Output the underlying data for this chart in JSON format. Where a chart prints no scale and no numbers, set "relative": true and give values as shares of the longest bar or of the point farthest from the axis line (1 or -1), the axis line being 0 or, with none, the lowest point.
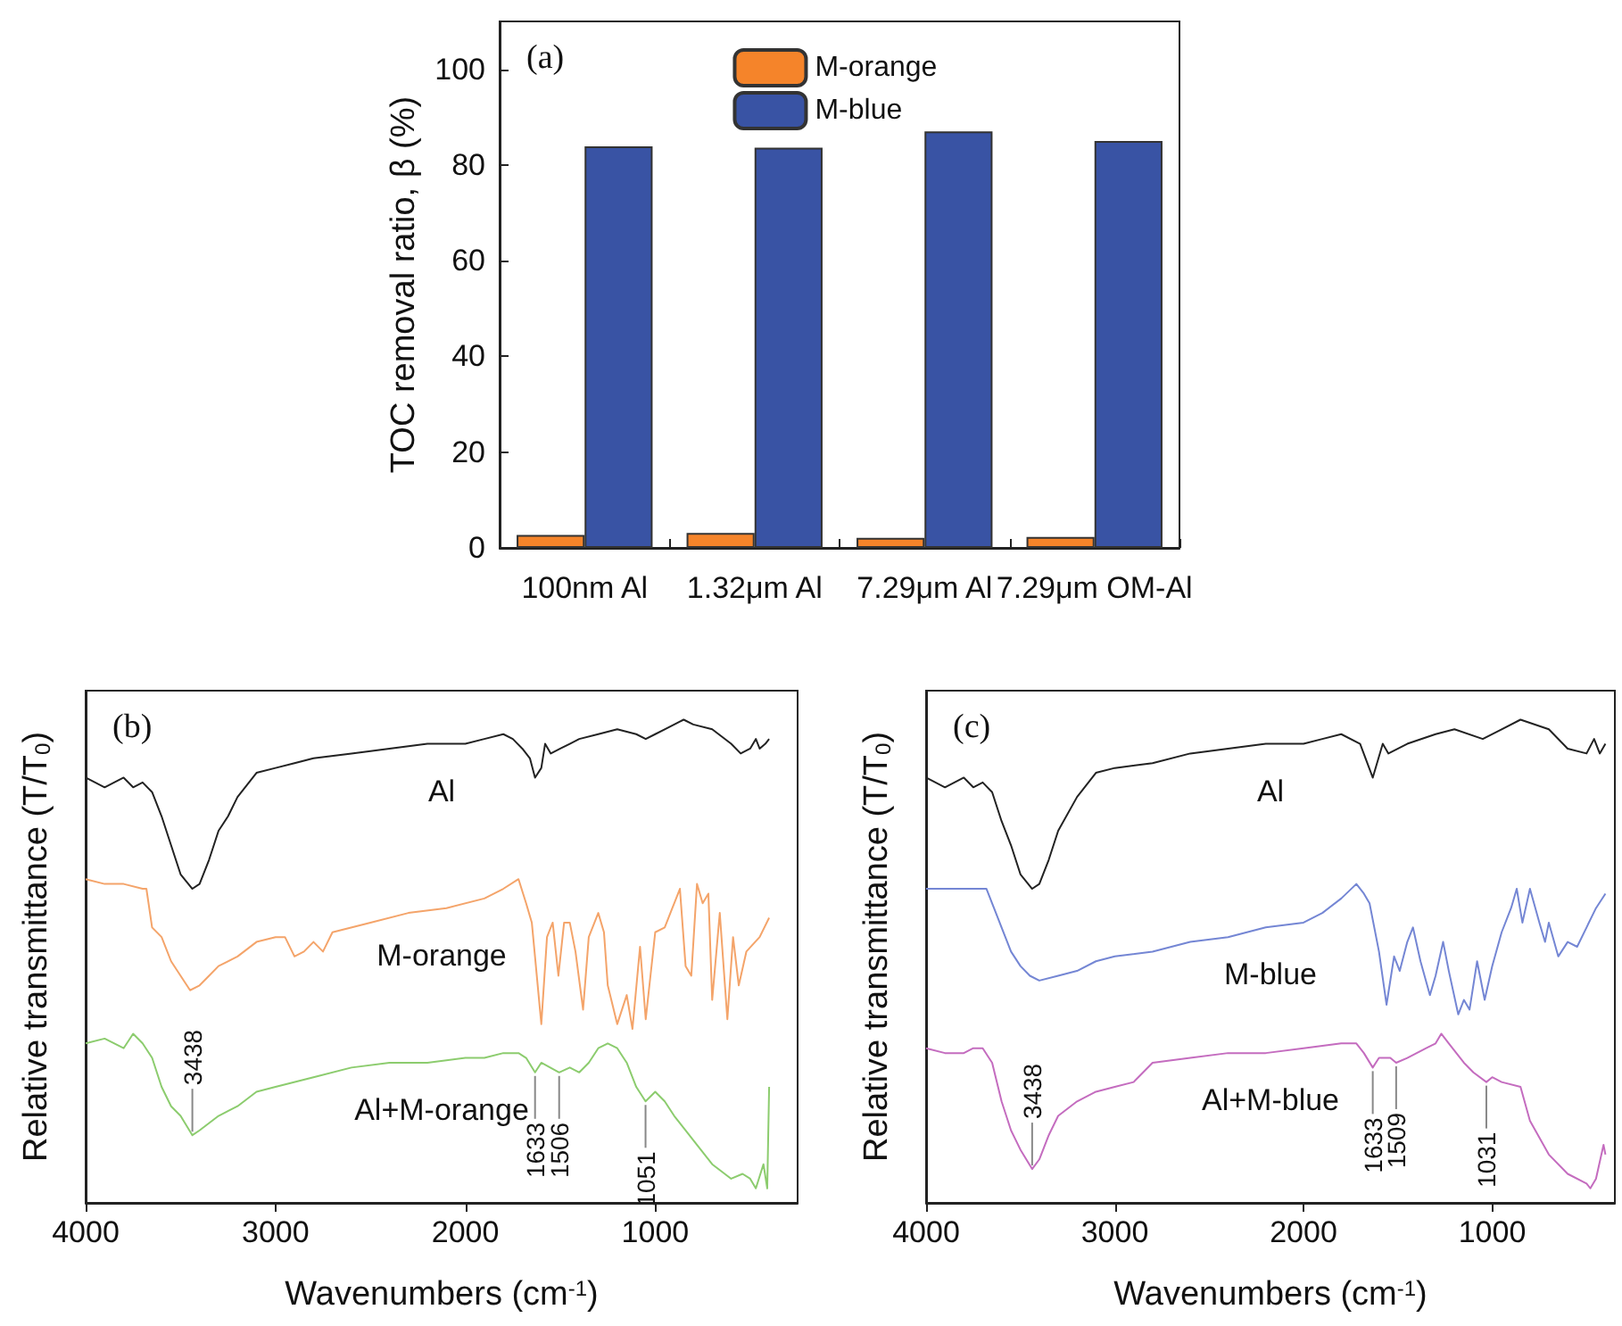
{
  "chart_data": [
    {
      "type": "bar",
      "title": "(a)",
      "ylabel": "TOC removal ratio, β (%)",
      "categories": [
        "100nm Al",
        "1.32μm Al",
        "7.29μm Al",
        "7.29μm OM-Al"
      ],
      "series": [
        {
          "name": "M-orange",
          "color": "#f5842a",
          "values": [
            2.7,
            3.1,
            2.1,
            2.3
          ]
        },
        {
          "name": "M-blue",
          "color": "#3953a4",
          "values": [
            83.9,
            83.6,
            87.0,
            85.0
          ]
        }
      ],
      "ylim": [
        0,
        110
      ],
      "yticks": [
        0,
        20,
        40,
        60,
        80,
        100
      ],
      "legend": "top"
    },
    {
      "type": "line",
      "title": "(b)",
      "xlabel": "Wavenumbers (cm$^{-1}$)",
      "ylabel": "Relative transmittance (T/T$_{0}$)",
      "relative": true,
      "xlim": [
        4000,
        250
      ],
      "xticks": [
        4000,
        3000,
        2000,
        1000
      ],
      "series": [
        {
          "name": "Al",
          "color": "#222222",
          "x": [
            4000,
            3900,
            3800,
            3750,
            3700,
            3650,
            3600,
            3550,
            3500,
            3438,
            3400,
            3350,
            3300,
            3250,
            3200,
            3100,
            3000,
            2900,
            2800,
            2600,
            2400,
            2200,
            2000,
            1900,
            1800,
            1750,
            1700,
            1660,
            1633,
            1600,
            1580,
            1550,
            1500,
            1450,
            1400,
            1300,
            1200,
            1100,
            1050,
            1000,
            950,
            850,
            800,
            700,
            600,
            550,
            500,
            470,
            450,
            420,
            400
          ],
          "values": [
            0.88,
            0.86,
            0.88,
            0.86,
            0.87,
            0.85,
            0.8,
            0.74,
            0.68,
            0.65,
            0.66,
            0.71,
            0.77,
            0.8,
            0.84,
            0.89,
            0.9,
            0.91,
            0.92,
            0.93,
            0.94,
            0.95,
            0.95,
            0.96,
            0.97,
            0.96,
            0.94,
            0.92,
            0.88,
            0.9,
            0.95,
            0.93,
            0.94,
            0.95,
            0.96,
            0.97,
            0.98,
            0.97,
            0.96,
            0.97,
            0.98,
            1.0,
            0.99,
            0.98,
            0.95,
            0.93,
            0.94,
            0.96,
            0.94,
            0.95,
            0.96
          ]
        },
        {
          "name": "M-orange",
          "color": "#f4a46a",
          "x": [
            4000,
            3900,
            3800,
            3700,
            3680,
            3650,
            3600,
            3550,
            3500,
            3450,
            3400,
            3350,
            3300,
            3200,
            3100,
            3000,
            2950,
            2900,
            2850,
            2800,
            2750,
            2700,
            2500,
            2300,
            2100,
            1900,
            1800,
            1720,
            1680,
            1650,
            1600,
            1570,
            1540,
            1510,
            1480,
            1450,
            1420,
            1380,
            1350,
            1300,
            1270,
            1250,
            1200,
            1150,
            1120,
            1080,
            1050,
            1000,
            950,
            900,
            870,
            840,
            810,
            780,
            750,
            720,
            700,
            660,
            620,
            590,
            560,
            520,
            450,
            400
          ],
          "values": [
            0.67,
            0.66,
            0.66,
            0.65,
            0.65,
            0.57,
            0.55,
            0.5,
            0.47,
            0.44,
            0.45,
            0.47,
            0.49,
            0.51,
            0.54,
            0.55,
            0.55,
            0.51,
            0.52,
            0.54,
            0.52,
            0.56,
            0.58,
            0.6,
            0.61,
            0.63,
            0.65,
            0.67,
            0.62,
            0.58,
            0.37,
            0.55,
            0.58,
            0.47,
            0.58,
            0.58,
            0.52,
            0.4,
            0.55,
            0.6,
            0.56,
            0.45,
            0.37,
            0.43,
            0.36,
            0.53,
            0.38,
            0.56,
            0.57,
            0.62,
            0.65,
            0.49,
            0.47,
            0.66,
            0.62,
            0.64,
            0.42,
            0.6,
            0.38,
            0.55,
            0.45,
            0.52,
            0.55,
            0.59
          ]
        },
        {
          "name": "Al+M-orange",
          "color": "#8ccc6e",
          "x": [
            4000,
            3900,
            3800,
            3750,
            3700,
            3650,
            3600,
            3550,
            3500,
            3438,
            3400,
            3300,
            3200,
            3100,
            3000,
            2800,
            2600,
            2400,
            2200,
            2000,
            1900,
            1800,
            1720,
            1680,
            1633,
            1600,
            1506,
            1450,
            1400,
            1350,
            1300,
            1250,
            1200,
            1150,
            1100,
            1051,
            1000,
            950,
            900,
            800,
            700,
            600,
            540,
            500,
            470,
            430,
            410,
            400
          ],
          "values": [
            0.33,
            0.34,
            0.32,
            0.35,
            0.33,
            0.3,
            0.24,
            0.2,
            0.18,
            0.14,
            0.15,
            0.18,
            0.2,
            0.23,
            0.24,
            0.26,
            0.28,
            0.29,
            0.29,
            0.3,
            0.3,
            0.31,
            0.31,
            0.3,
            0.27,
            0.29,
            0.27,
            0.28,
            0.27,
            0.29,
            0.32,
            0.33,
            0.32,
            0.29,
            0.24,
            0.21,
            0.23,
            0.21,
            0.18,
            0.13,
            0.08,
            0.05,
            0.06,
            0.05,
            0.03,
            0.08,
            0.03,
            0.24
          ]
        }
      ],
      "annotations": [
        {
          "text": "3438",
          "x": 3438,
          "y": 0.14
        },
        {
          "text": "1633",
          "x": 1633,
          "y": 0.27
        },
        {
          "text": "1506",
          "x": 1506,
          "y": 0.27
        },
        {
          "text": "1051",
          "x": 1051,
          "y": 0.21
        }
      ],
      "legend": false
    },
    {
      "type": "line",
      "title": "(c)",
      "xlabel": "Wavenumbers (cm$^{-1}$)",
      "ylabel": "Relative transmittance (T/T$_{0}$)",
      "relative": true,
      "xlim": [
        4000,
        350
      ],
      "xticks": [
        4000,
        3000,
        2000,
        1000
      ],
      "series": [
        {
          "name": "Al",
          "color": "#222222",
          "x": [
            4000,
            3900,
            3800,
            3750,
            3700,
            3650,
            3600,
            3550,
            3500,
            3438,
            3400,
            3350,
            3300,
            3200,
            3100,
            3000,
            2800,
            2600,
            2400,
            2200,
            2000,
            1900,
            1800,
            1700,
            1633,
            1580,
            1550,
            1450,
            1300,
            1200,
            1050,
            950,
            850,
            700,
            600,
            500,
            460,
            430,
            400
          ],
          "values": [
            0.88,
            0.86,
            0.88,
            0.86,
            0.87,
            0.85,
            0.79,
            0.74,
            0.68,
            0.65,
            0.66,
            0.71,
            0.77,
            0.84,
            0.89,
            0.9,
            0.91,
            0.93,
            0.94,
            0.95,
            0.95,
            0.96,
            0.97,
            0.95,
            0.88,
            0.95,
            0.93,
            0.95,
            0.97,
            0.98,
            0.96,
            0.98,
            1.0,
            0.98,
            0.94,
            0.93,
            0.96,
            0.93,
            0.95
          ]
        },
        {
          "name": "M-blue",
          "color": "#7486d4",
          "x": [
            4000,
            3900,
            3800,
            3700,
            3680,
            3650,
            3600,
            3550,
            3500,
            3450,
            3400,
            3300,
            3200,
            3100,
            3000,
            2800,
            2600,
            2400,
            2200,
            2000,
            1900,
            1800,
            1720,
            1680,
            1650,
            1600,
            1560,
            1520,
            1490,
            1450,
            1420,
            1380,
            1330,
            1300,
            1260,
            1230,
            1180,
            1150,
            1120,
            1080,
            1040,
            1000,
            950,
            900,
            870,
            840,
            800,
            750,
            720,
            700,
            650,
            600,
            550,
            500,
            450,
            400
          ],
          "values": [
            0.65,
            0.65,
            0.65,
            0.65,
            0.65,
            0.62,
            0.57,
            0.52,
            0.49,
            0.47,
            0.46,
            0.47,
            0.48,
            0.5,
            0.51,
            0.52,
            0.54,
            0.55,
            0.57,
            0.58,
            0.6,
            0.63,
            0.66,
            0.64,
            0.62,
            0.52,
            0.41,
            0.51,
            0.48,
            0.54,
            0.57,
            0.5,
            0.43,
            0.47,
            0.54,
            0.48,
            0.39,
            0.42,
            0.4,
            0.5,
            0.42,
            0.49,
            0.56,
            0.61,
            0.65,
            0.58,
            0.65,
            0.58,
            0.54,
            0.58,
            0.51,
            0.54,
            0.53,
            0.57,
            0.61,
            0.64
          ]
        },
        {
          "name": "Al+M-blue",
          "color": "#c46cbf",
          "x": [
            4000,
            3900,
            3800,
            3750,
            3700,
            3650,
            3600,
            3550,
            3500,
            3438,
            3400,
            3350,
            3300,
            3200,
            3100,
            3000,
            2900,
            2800,
            2600,
            2400,
            2200,
            2000,
            1800,
            1720,
            1680,
            1633,
            1600,
            1540,
            1509,
            1450,
            1350,
            1300,
            1270,
            1230,
            1150,
            1100,
            1031,
            1000,
            950,
            850,
            800,
            700,
            600,
            500,
            480,
            450,
            410,
            400
          ],
          "values": [
            0.32,
            0.31,
            0.31,
            0.32,
            0.32,
            0.29,
            0.21,
            0.15,
            0.11,
            0.07,
            0.09,
            0.14,
            0.18,
            0.21,
            0.23,
            0.24,
            0.25,
            0.29,
            0.3,
            0.31,
            0.31,
            0.32,
            0.33,
            0.33,
            0.31,
            0.28,
            0.3,
            0.3,
            0.29,
            0.3,
            0.32,
            0.33,
            0.35,
            0.33,
            0.29,
            0.27,
            0.25,
            0.26,
            0.25,
            0.24,
            0.17,
            0.1,
            0.06,
            0.04,
            0.03,
            0.05,
            0.12,
            0.1
          ]
        }
      ],
      "annotations": [
        {
          "text": "3438",
          "x": 3438,
          "y": 0.07
        },
        {
          "text": "1633",
          "x": 1633,
          "y": 0.28
        },
        {
          "text": "1509",
          "x": 1509,
          "y": 0.29
        },
        {
          "text": "1031",
          "x": 1031,
          "y": 0.25
        }
      ],
      "legend": false
    }
  ]
}
